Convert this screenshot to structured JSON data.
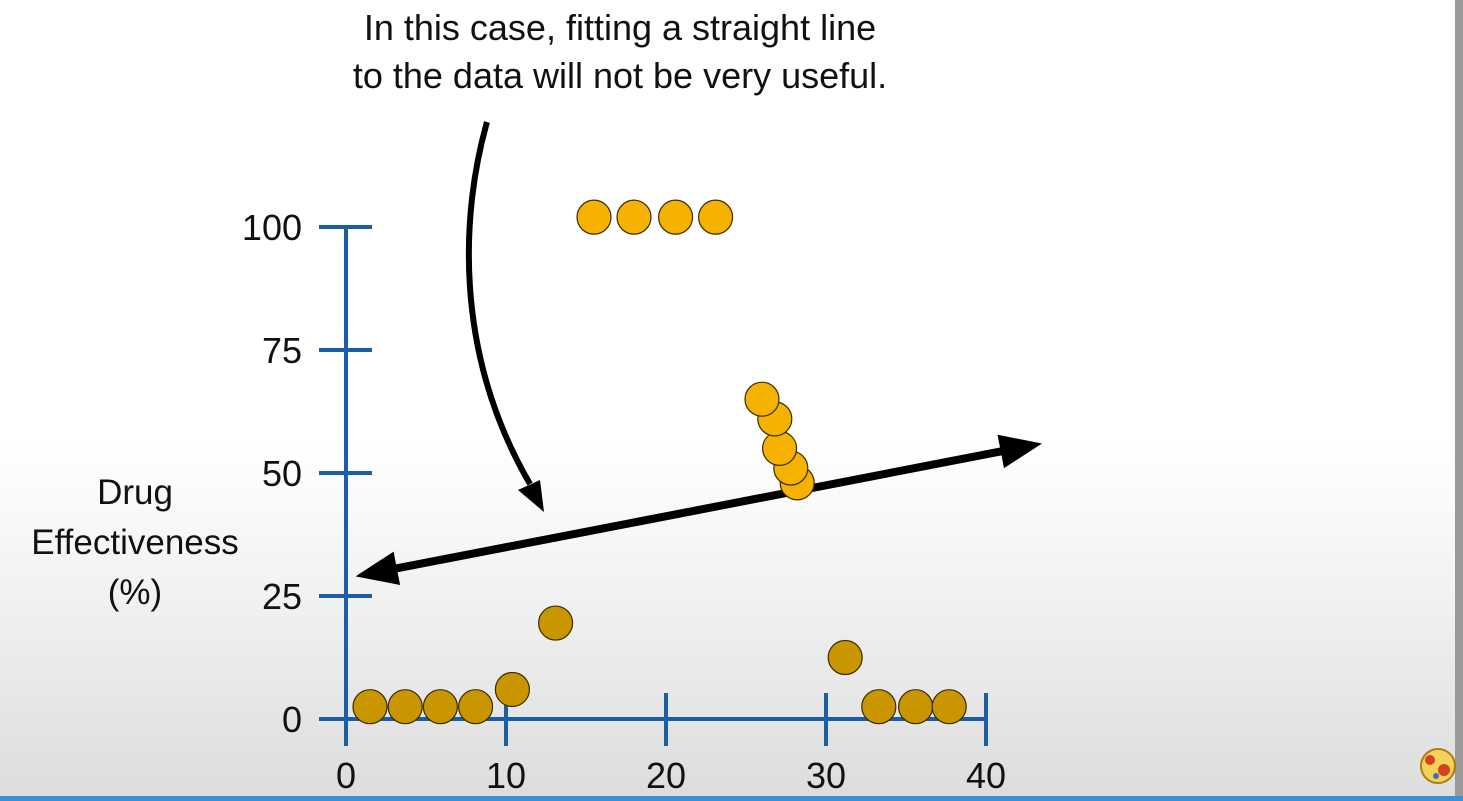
{
  "annotation": {
    "line1": "In this case, fitting a straight line",
    "line2": "to the data will not be very useful."
  },
  "chart_data": {
    "type": "scatter",
    "title": "",
    "xlabel": "",
    "ylabel_lines": [
      "Drug",
      "Effectiveness",
      "(%)"
    ],
    "xlim": [
      0,
      40
    ],
    "ylim": [
      0,
      100
    ],
    "x_ticks": [
      0,
      10,
      20,
      30,
      40
    ],
    "y_ticks": [
      0,
      25,
      50,
      75,
      100
    ],
    "grid": false,
    "legend": "none",
    "points": [
      {
        "x": 1.5,
        "y": 2.5
      },
      {
        "x": 3.7,
        "y": 2.5
      },
      {
        "x": 5.9,
        "y": 2.5
      },
      {
        "x": 8.1,
        "y": 2.5
      },
      {
        "x": 10.4,
        "y": 6
      },
      {
        "x": 13.1,
        "y": 19.5
      },
      {
        "x": 15.5,
        "y": 102
      },
      {
        "x": 18,
        "y": 102
      },
      {
        "x": 20.6,
        "y": 102
      },
      {
        "x": 23.1,
        "y": 102
      },
      {
        "x": 28.2,
        "y": 48
      },
      {
        "x": 27.8,
        "y": 51
      },
      {
        "x": 27.1,
        "y": 55
      },
      {
        "x": 26.8,
        "y": 61
      },
      {
        "x": 26,
        "y": 65
      },
      {
        "x": 31.2,
        "y": 12.5
      },
      {
        "x": 33.3,
        "y": 2.5
      },
      {
        "x": 35.6,
        "y": 2.5
      },
      {
        "x": 37.7,
        "y": 2.5
      }
    ],
    "fit_line": {
      "x1": 0.6,
      "y1": 29,
      "x2": 43.5,
      "y2": 56
    },
    "colors": {
      "axis": "#1a5fa6",
      "point_light": "#f6b200",
      "point_dark": "#c99600",
      "point_outline": "#3a2a00",
      "line": "#000000"
    }
  }
}
